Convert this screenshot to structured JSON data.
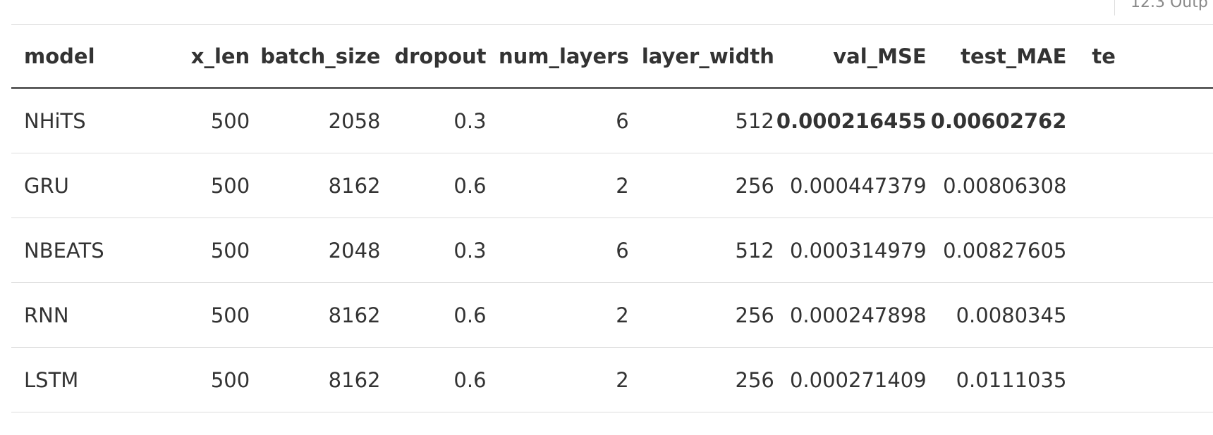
{
  "corner_note": "12.3 Outp",
  "table": {
    "headers": [
      "model",
      "x_len",
      "batch_size",
      "dropout",
      "num_layers",
      "layer_width",
      "val_MSE",
      "test_MAE",
      "te"
    ],
    "rows": [
      {
        "model": "NHiTS",
        "x_len": "500",
        "batch_size": "2058",
        "dropout": "0.3",
        "num_layers": "6",
        "layer_width": "512",
        "val_MSE": "0.000216455",
        "test_MAE": "0.00602762"
      },
      {
        "model": "GRU",
        "x_len": "500",
        "batch_size": "8162",
        "dropout": "0.6",
        "num_layers": "2",
        "layer_width": "256",
        "val_MSE": "0.000447379",
        "test_MAE": "0.00806308"
      },
      {
        "model": "NBEATS",
        "x_len": "500",
        "batch_size": "2048",
        "dropout": "0.3",
        "num_layers": "6",
        "layer_width": "512",
        "val_MSE": "0.000314979",
        "test_MAE": "0.00827605"
      },
      {
        "model": "RNN",
        "x_len": "500",
        "batch_size": "8162",
        "dropout": "0.6",
        "num_layers": "2",
        "layer_width": "256",
        "val_MSE": "0.000247898",
        "test_MAE": "0.0080345"
      },
      {
        "model": "LSTM",
        "x_len": "500",
        "batch_size": "8162",
        "dropout": "0.6",
        "num_layers": "2",
        "layer_width": "256",
        "val_MSE": "0.000271409",
        "test_MAE": "0.0111035"
      }
    ]
  }
}
